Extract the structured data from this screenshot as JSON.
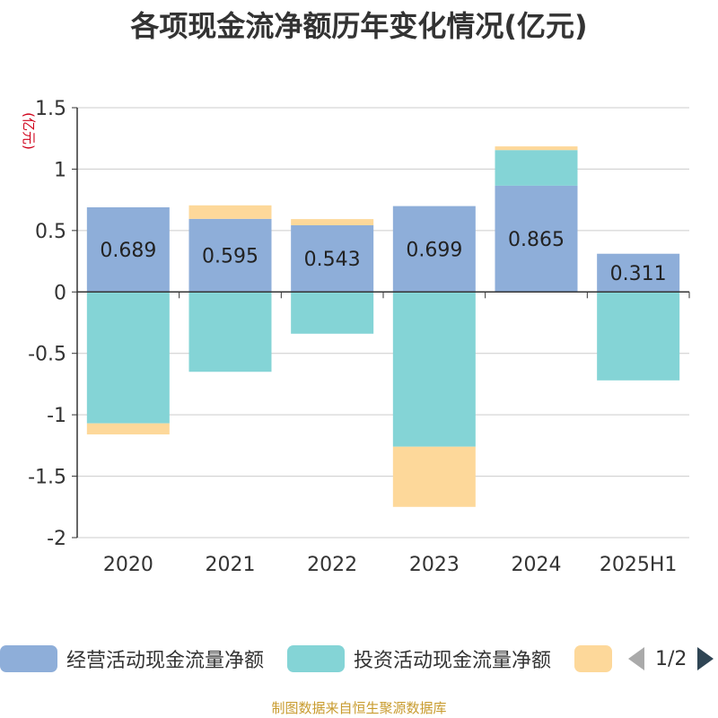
{
  "title": "各项现金流净额历年变化情况(亿元)",
  "source": "制图数据来自恒生聚源数据库",
  "pager": {
    "text": "1/2"
  },
  "chart_data": {
    "type": "bar",
    "stacked": true,
    "title": "各项现金流净额历年变化情况(亿元)",
    "ylabel": "(亿元)",
    "ylim": [
      -2,
      1.5
    ],
    "yticks": [
      1.5,
      1,
      0.5,
      0,
      -0.5,
      -1,
      -1.5,
      -2
    ],
    "ytick_labels": [
      "1.5",
      "1",
      "0.5",
      "0",
      "-0.5",
      "-1",
      "-1.5",
      "-2"
    ],
    "grid": true,
    "legend_position": "bottom",
    "categories": [
      "2020",
      "2021",
      "2022",
      "2023",
      "2024",
      "2025H1"
    ],
    "series": [
      {
        "name": "经营活动现金流量净额",
        "color": "#8eaed9",
        "labeled": true,
        "values": [
          0.689,
          0.595,
          0.543,
          0.699,
          0.865,
          0.311
        ]
      },
      {
        "name": "投资活动现金流量净额",
        "color": "#84d4d6",
        "labeled": false,
        "values": [
          -1.07,
          -0.65,
          -0.34,
          -1.26,
          0.29,
          -0.72
        ]
      },
      {
        "name": "",
        "color": "#fdd89a",
        "labeled": false,
        "values": [
          -0.09,
          0.11,
          0.05,
          -0.49,
          0.03,
          0
        ]
      }
    ]
  }
}
